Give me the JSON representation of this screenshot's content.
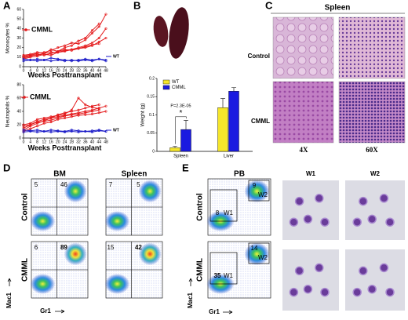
{
  "panel_labels": [
    "A",
    "B",
    "C",
    "D",
    "E"
  ],
  "chart_data": [
    {
      "type": "line",
      "ylabel": "Monocytes %",
      "xlabel": "Weeks Posttransplant",
      "x": [
        0,
        4,
        8,
        12,
        16,
        20,
        24,
        28,
        32,
        36,
        40,
        44,
        48
      ],
      "xlim": [
        0,
        48
      ],
      "xticks": [
        0,
        4,
        8,
        12,
        16,
        20,
        24,
        28,
        32,
        36,
        40,
        44,
        48
      ],
      "ylim": [
        0,
        60
      ],
      "yticks": [
        0,
        10,
        20,
        30,
        40,
        50,
        60
      ],
      "series": [
        {
          "name": "CMML",
          "color": "#e41a1c",
          "lines": [
            [
              10,
              12,
              14,
              15,
              17,
              20,
              22,
              25,
              24,
              28,
              35,
              42,
              55
            ],
            [
              12,
              13,
              15,
              14,
              18,
              16,
              20,
              22,
              27,
              30,
              38,
              45,
              null
            ],
            [
              8,
              10,
              11,
              13,
              12,
              15,
              17,
              18,
              20,
              22,
              25,
              30,
              40
            ],
            [
              11,
              12,
              12,
              14,
              15,
              15,
              16,
              18,
              19,
              20,
              22,
              26,
              30
            ],
            [
              9,
              11,
              13,
              12,
              14,
              16,
              18,
              17,
              19,
              21,
              23,
              24,
              null
            ]
          ]
        },
        {
          "name": "WT",
          "color": "#1c1cc8",
          "lines": [
            [
              8,
              7,
              8,
              7,
              9,
              8,
              7,
              6,
              7,
              8,
              7,
              8,
              6
            ],
            [
              6,
              7,
              6,
              7,
              6,
              7,
              6,
              7,
              6,
              7,
              6,
              8,
              7
            ]
          ]
        }
      ]
    },
    {
      "type": "line",
      "ylabel": "Neutrophils %",
      "xlabel": "Weeks Posttransplant",
      "x": [
        0,
        4,
        8,
        12,
        16,
        20,
        24,
        28,
        32,
        36,
        40,
        44,
        48
      ],
      "xlim": [
        0,
        48
      ],
      "xticks": [
        0,
        4,
        8,
        12,
        16,
        20,
        24,
        28,
        32,
        36,
        40,
        44,
        48
      ],
      "ylim": [
        0,
        80
      ],
      "yticks": [
        0,
        20,
        40,
        60,
        80
      ],
      "series": [
        {
          "name": "CMML",
          "color": "#e41a1c",
          "lines": [
            [
              15,
              20,
              25,
              28,
              30,
              35,
              38,
              40,
              42,
              45,
              48,
              50,
              null
            ],
            [
              12,
              18,
              22,
              26,
              30,
              32,
              34,
              36,
              38,
              40,
              42,
              45,
              48
            ],
            [
              20,
              22,
              28,
              30,
              32,
              34,
              36,
              42,
              60,
              50,
              46,
              44,
              null
            ],
            [
              10,
              14,
              18,
              22,
              24,
              28,
              30,
              32,
              34,
              35,
              36,
              38,
              40
            ],
            [
              18,
              20,
              24,
              25,
              27,
              30,
              33,
              35,
              36,
              38,
              40,
              42,
              null
            ]
          ]
        },
        {
          "name": "WT",
          "color": "#1c1cc8",
          "lines": [
            [
              12,
              11,
              12,
              10,
              12,
              11,
              10,
              12,
              11,
              10,
              11,
              12,
              10
            ],
            [
              9,
              10,
              9,
              10,
              9,
              10,
              9,
              10,
              9,
              10,
              9,
              11,
              10
            ]
          ]
        }
      ]
    },
    {
      "type": "bar",
      "ylabel": "Weight (g)",
      "categories": [
        "Spleen",
        "Liver"
      ],
      "ylim": [
        0,
        0.2
      ],
      "yticks": [
        0,
        0.05,
        0.1,
        0.15,
        0.2
      ],
      "series": [
        {
          "name": "WT",
          "color": "#f5e62a",
          "values": [
            0.01,
            0.12
          ],
          "errors": [
            0.004,
            0.025
          ]
        },
        {
          "name": "CMML",
          "color": "#1a1ae0",
          "values": [
            0.06,
            0.165
          ],
          "errors": [
            0.025,
            0.01
          ]
        }
      ],
      "annotations": [
        "P=2.3E-05",
        "*"
      ]
    }
  ],
  "histology": {
    "title": "Spleen",
    "rows": [
      "Control",
      "CMML"
    ],
    "columns": [
      "4X",
      "60X"
    ]
  },
  "flow_bm_spleen": {
    "columns": [
      "BM",
      "Spleen"
    ],
    "rows": [
      "Control",
      "CMML"
    ],
    "quadrants": [
      [
        [
          5,
          46
        ],
        [
          7,
          5
        ]
      ],
      [
        [
          6,
          89
        ],
        [
          15,
          42
        ]
      ]
    ],
    "y_axis": "Mac1",
    "x_axis": "Gr1"
  },
  "flow_pb": {
    "title": "PB",
    "rows": [
      "Control",
      "CMML"
    ],
    "gates": [
      [
        {
          "value": 8,
          "label": "W1"
        },
        {
          "value": 9,
          "label": "W2"
        }
      ],
      [
        {
          "value": 35,
          "label": "W1"
        },
        {
          "value": 14,
          "label": "W2"
        }
      ]
    ],
    "y_axis": "Mac1",
    "x_axis": "Gr1",
    "cytospin_columns": [
      "W1",
      "W2"
    ]
  }
}
